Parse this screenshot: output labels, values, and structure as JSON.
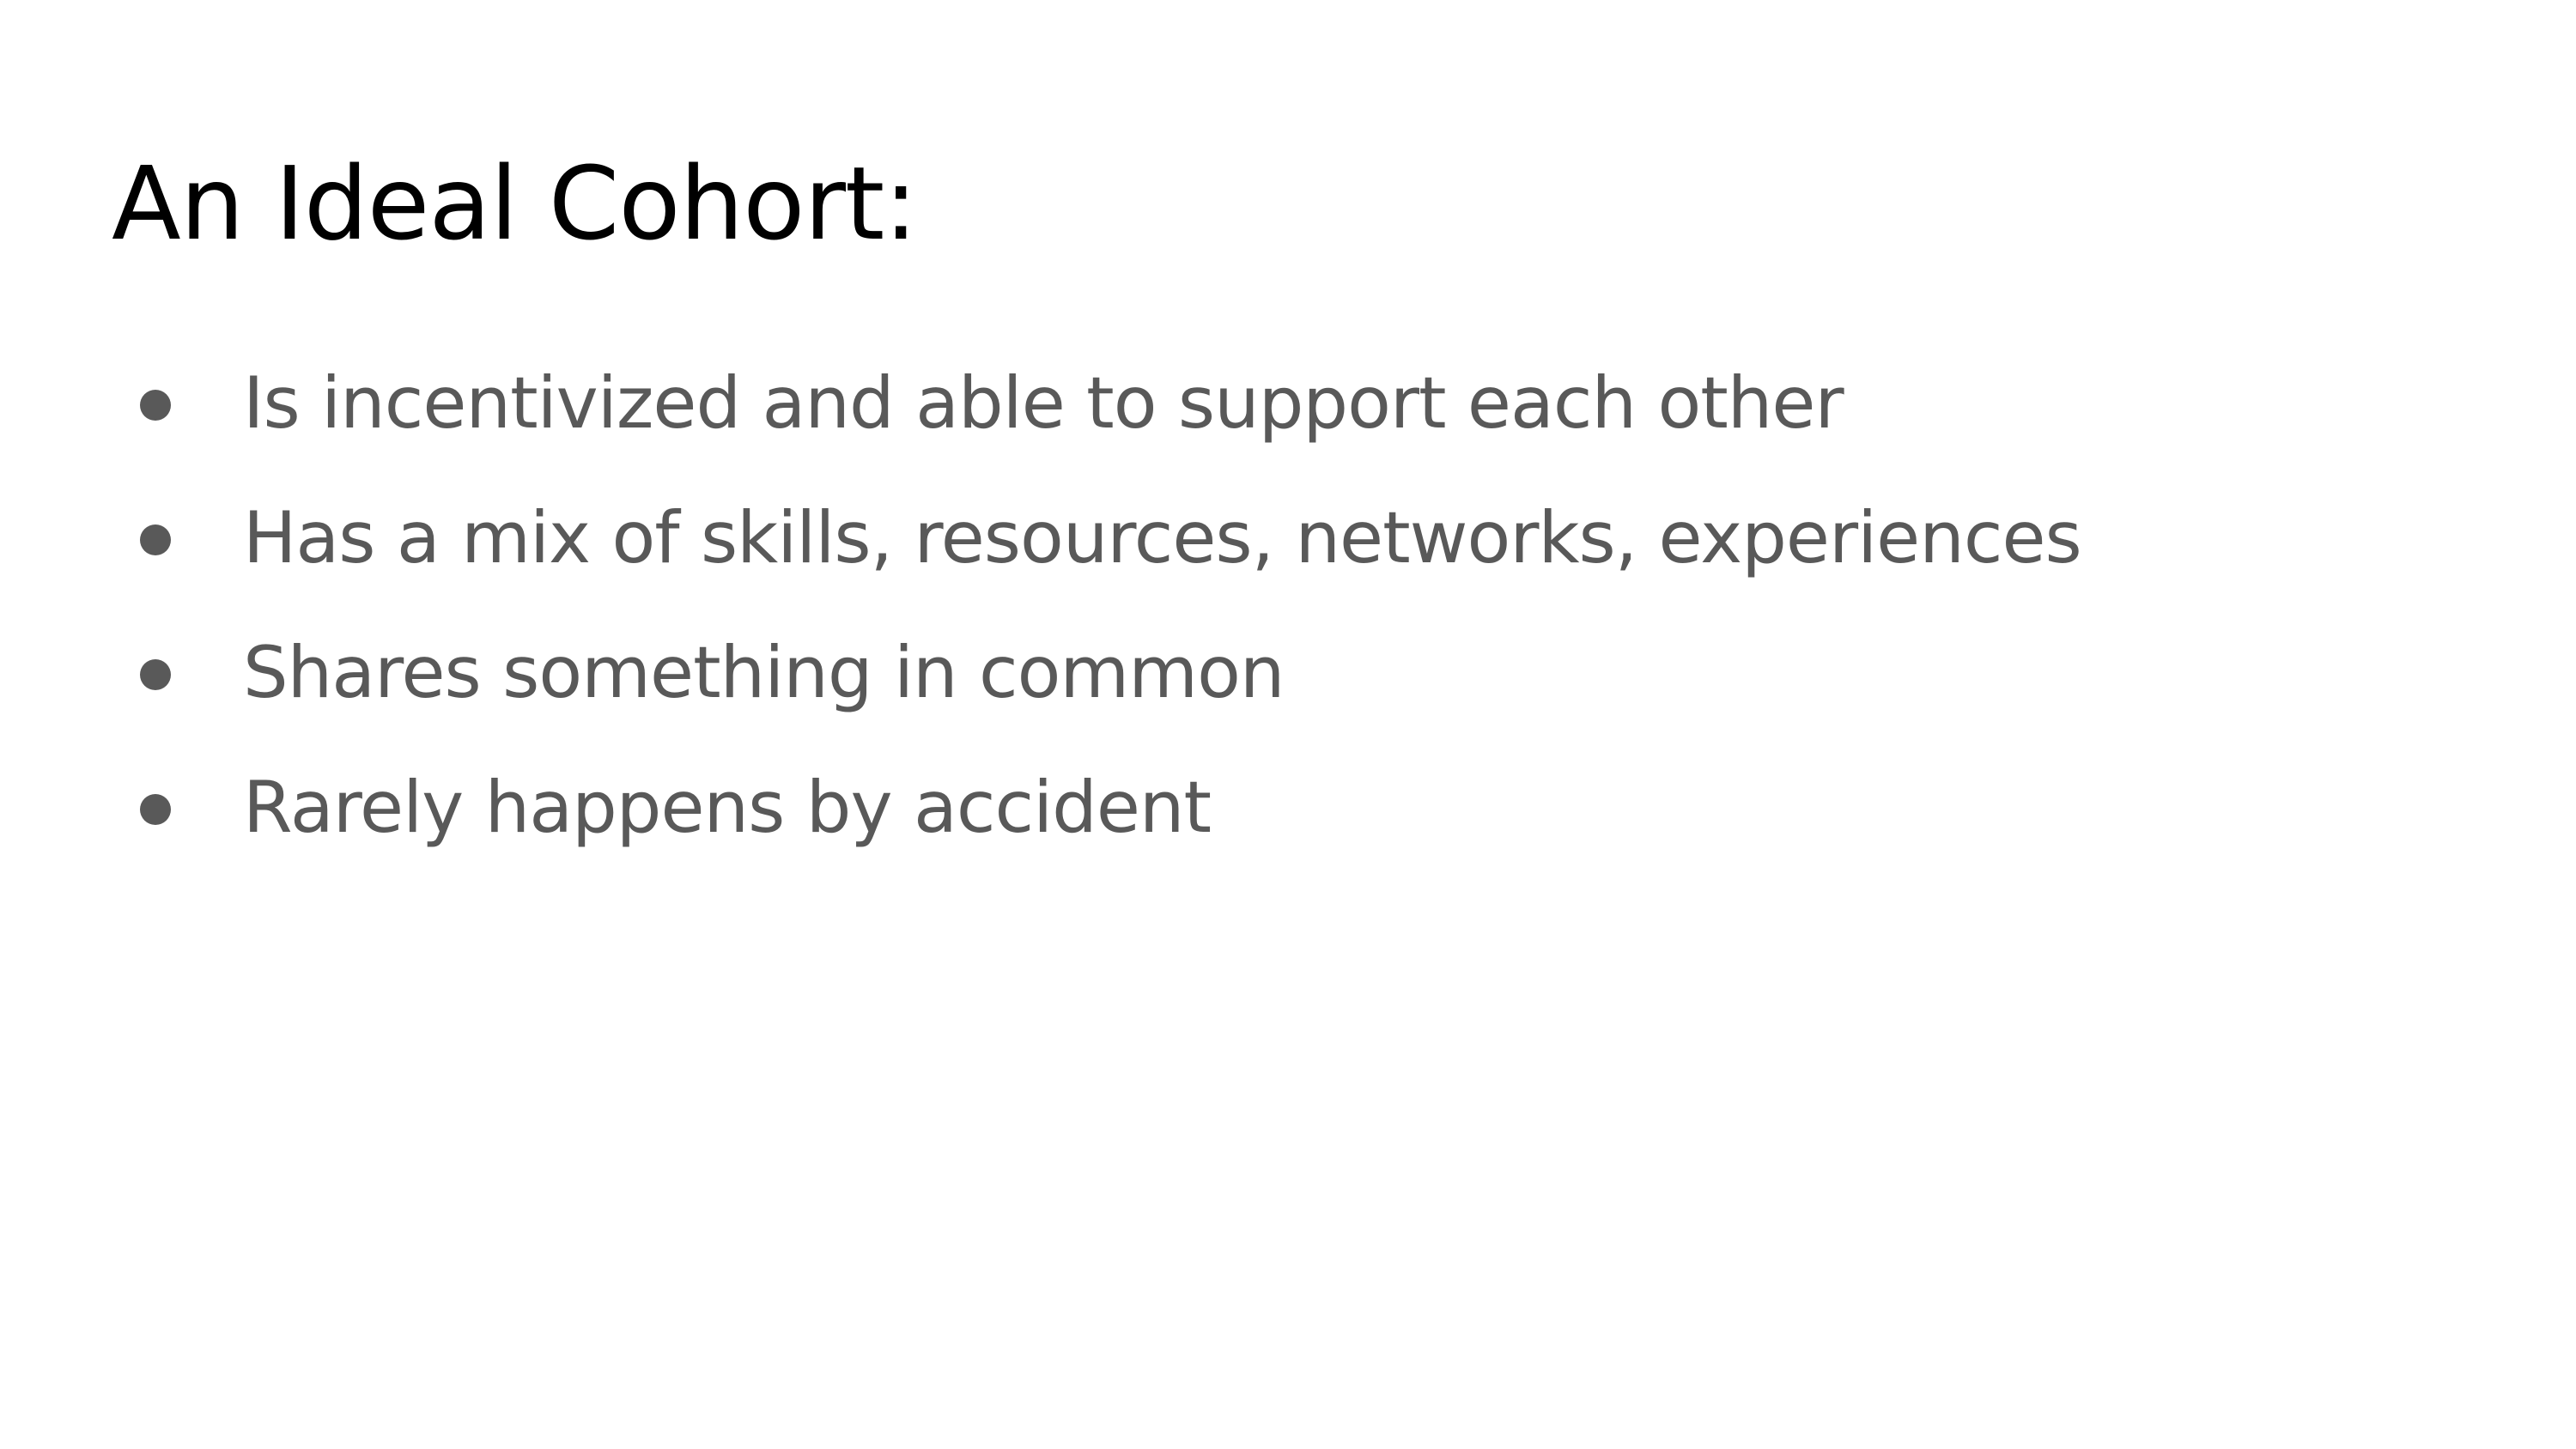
{
  "slide": {
    "title": "An Ideal Cohort:",
    "bullets": [
      {
        "text": "Is incentivized and able to support each other"
      },
      {
        "text": "Has a mix of skills, resources, networks, experiences"
      },
      {
        "text": "Shares something in common"
      },
      {
        "text": "Rarely happens by accident"
      }
    ]
  },
  "colors": {
    "background": "#ffffff",
    "title_text": "#000000",
    "body_text": "#595959",
    "bullet_marker": "#595959"
  },
  "icons": {
    "bullet_marker": "filled-circle-bullet"
  }
}
